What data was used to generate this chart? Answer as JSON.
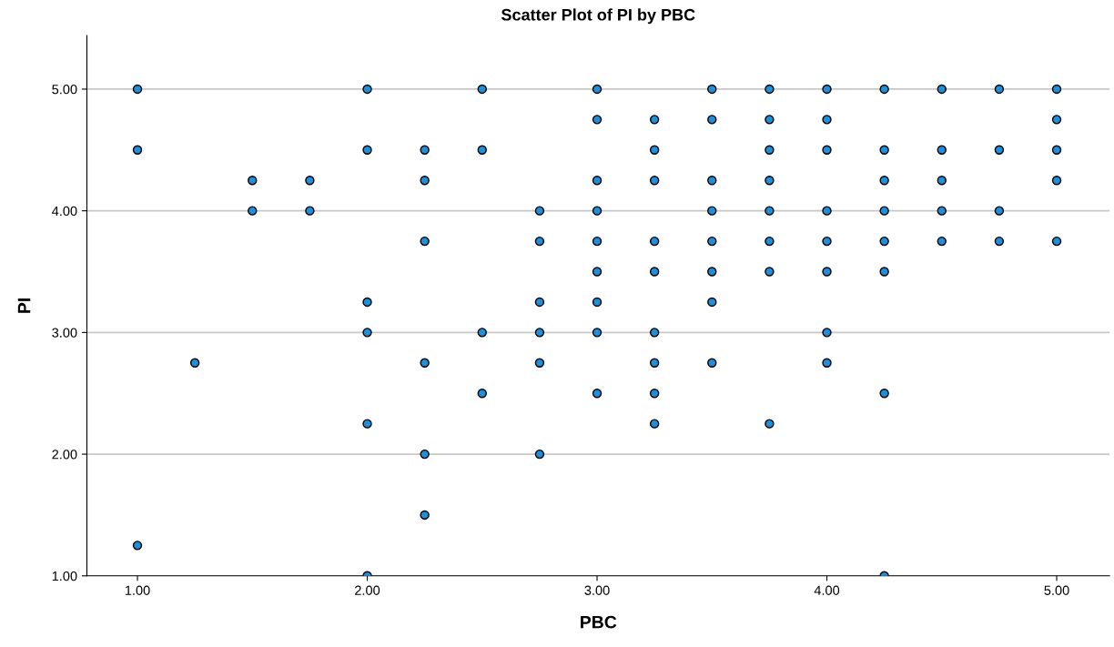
{
  "chart_data": {
    "type": "scatter",
    "title": "Scatter Plot of PI by PBC",
    "xlabel": "PBC",
    "ylabel": "PI",
    "x": [
      1,
      1,
      1,
      1.25,
      1.5,
      1.5,
      1.75,
      1.75,
      2,
      2,
      2,
      2,
      2,
      2,
      2.25,
      2.25,
      2.25,
      2.25,
      2.25,
      2.25,
      2.5,
      2.5,
      2.5,
      2.5,
      2.75,
      2.75,
      2.75,
      2.75,
      2.75,
      2.75,
      3,
      3,
      3,
      3,
      3,
      3,
      3,
      3,
      3,
      3.25,
      3.25,
      3.25,
      3.25,
      3.25,
      3.25,
      3.25,
      3.25,
      3.25,
      3.5,
      3.5,
      3.5,
      3.5,
      3.5,
      3.5,
      3.5,
      3.5,
      3.75,
      3.75,
      3.75,
      3.75,
      3.75,
      3.75,
      3.75,
      3.75,
      4,
      4,
      4,
      4,
      4,
      4,
      4,
      4,
      4.25,
      4.25,
      4.25,
      4.25,
      4.25,
      4.25,
      4.25,
      4.25,
      4.5,
      4.5,
      4.5,
      4.5,
      4.5,
      4.75,
      4.75,
      4.75,
      4.75,
      5,
      5,
      5,
      5,
      5
    ],
    "series": [
      {
        "color": "#1f8fdb",
        "values": [
          5,
          4.5,
          1.25,
          2.75,
          4.25,
          4,
          4.25,
          4,
          5,
          4.5,
          3.25,
          3,
          2.25,
          1,
          4.5,
          4.25,
          3.75,
          2.75,
          2,
          1.5,
          5,
          4.5,
          3,
          2.5,
          4,
          3.75,
          3.25,
          3,
          2.75,
          2,
          5,
          4.75,
          4.25,
          4,
          3.75,
          3.5,
          3.25,
          3,
          2.5,
          4.75,
          4.5,
          4.25,
          3.75,
          3.5,
          3,
          2.75,
          2.5,
          2.25,
          5,
          4.75,
          4.25,
          4,
          3.75,
          3.5,
          3.25,
          2.75,
          5,
          4.75,
          4.5,
          4.25,
          4,
          3.75,
          3.5,
          2.25,
          5,
          4.75,
          4.5,
          4,
          3.75,
          3.5,
          3,
          2.75,
          5,
          4.5,
          4.25,
          4,
          3.75,
          3.5,
          2.5,
          1,
          5,
          4.5,
          4.25,
          4,
          3.75,
          5,
          4.5,
          4,
          3.75,
          5,
          4.75,
          4.5,
          4.25,
          3.75
        ]
      }
    ],
    "xlim": [
      0.78,
      5.23
    ],
    "ylim": [
      1,
      5.44
    ],
    "xticks": [
      {
        "value": 1,
        "label": "1.00"
      },
      {
        "value": 2,
        "label": "2.00"
      },
      {
        "value": 3,
        "label": "3.00"
      },
      {
        "value": 4,
        "label": "4.00"
      },
      {
        "value": 5,
        "label": "5.00"
      }
    ],
    "yticks": [
      {
        "value": 1,
        "label": "1.00"
      },
      {
        "value": 2,
        "label": "2.00"
      },
      {
        "value": 3,
        "label": "3.00"
      },
      {
        "value": 4,
        "label": "4.00"
      },
      {
        "value": 5,
        "label": "5.00"
      }
    ],
    "grid": "y",
    "marker": "circle"
  }
}
